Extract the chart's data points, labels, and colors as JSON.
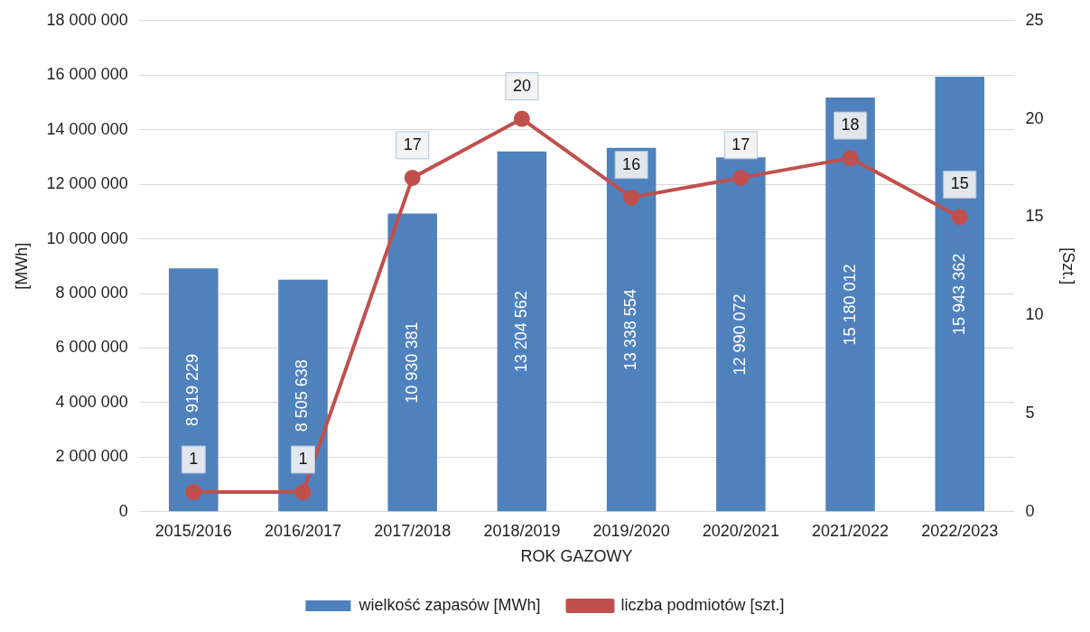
{
  "chart_data": {
    "type": "bar",
    "xlabel": "ROK GAZOWY",
    "ylabel": "[MWh]",
    "y2label": "[Szt.]",
    "categories": [
      "2015/2016",
      "2016/2017",
      "2017/2018",
      "2018/2019",
      "2019/2020",
      "2020/2021",
      "2021/2022",
      "2022/2023"
    ],
    "series": [
      {
        "name": "wielkość zapasów [MWh]",
        "color": "#4f81bd",
        "values": [
          8919229,
          8505638,
          10930381,
          13204562,
          13338554,
          12990072,
          15180012,
          15943362
        ],
        "value_labels": [
          "8 919 229",
          "8 505 638",
          "10 930 381",
          "13 204 562",
          "13 338 554",
          "12 990 072",
          "15 180 012",
          "15 943 362"
        ]
      },
      {
        "name": "liczba podmiotów [szt.]",
        "type": "line",
        "axis": "y2",
        "color": "#c0504d",
        "marker": "circle",
        "values": [
          1,
          1,
          17,
          20,
          16,
          17,
          18,
          15
        ],
        "value_labels": [
          "1",
          "1",
          "17",
          "20",
          "16",
          "17",
          "18",
          "15"
        ]
      }
    ],
    "ylim": [
      0,
      18000000
    ],
    "yticks": [
      {
        "value": 0,
        "label": "0"
      },
      {
        "value": 2000000,
        "label": "2 000 000"
      },
      {
        "value": 4000000,
        "label": "4 000 000"
      },
      {
        "value": 6000000,
        "label": "6 000 000"
      },
      {
        "value": 8000000,
        "label": "8 000 000"
      },
      {
        "value": 10000000,
        "label": "10 000 000"
      },
      {
        "value": 12000000,
        "label": "12 000 000"
      },
      {
        "value": 14000000,
        "label": "14 000 000"
      },
      {
        "value": 16000000,
        "label": "16 000 000"
      },
      {
        "value": 18000000,
        "label": "18 000 000"
      }
    ],
    "y2lim": [
      0,
      25
    ],
    "y2ticks": [
      0,
      5,
      10,
      15,
      20,
      25
    ],
    "grid": "y",
    "legend": "bottom"
  }
}
